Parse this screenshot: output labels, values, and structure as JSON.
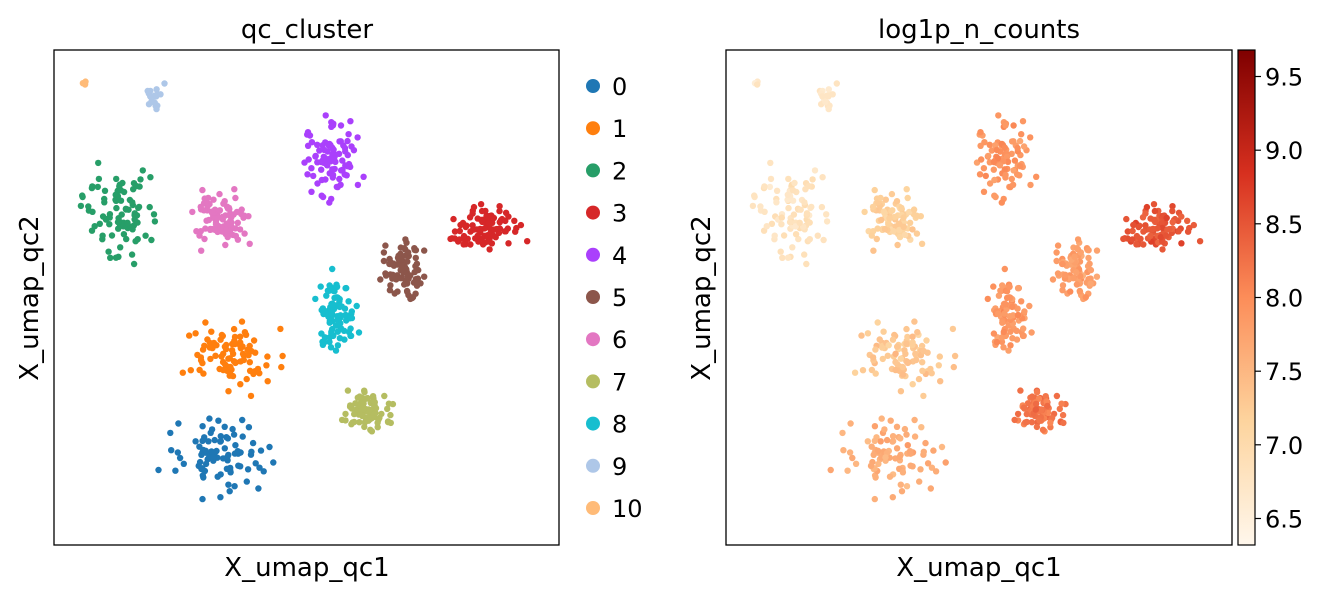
{
  "chart_data": [
    {
      "type": "scatter",
      "title": "qc_cluster",
      "xlabel": "X_umap_qc1",
      "ylabel": "X_umap_qc2",
      "ticks": "none",
      "legend_position": "right",
      "legend": [
        {
          "label": "0",
          "color": "#1f77b4"
        },
        {
          "label": "1",
          "color": "#ff7f0e"
        },
        {
          "label": "2",
          "color": "#279e68"
        },
        {
          "label": "3",
          "color": "#d62728"
        },
        {
          "label": "4",
          "color": "#aa40fc"
        },
        {
          "label": "5",
          "color": "#8c564b"
        },
        {
          "label": "6",
          "color": "#e377c2"
        },
        {
          "label": "7",
          "color": "#b5bd61"
        },
        {
          "label": "8",
          "color": "#17becf"
        },
        {
          "label": "9",
          "color": "#aec7e8"
        },
        {
          "label": "10",
          "color": "#ffbb78"
        }
      ],
      "xlim": [
        0,
        100
      ],
      "ylim": [
        0,
        100
      ],
      "clusters": [
        {
          "name": "0",
          "center": [
            33,
            18
          ],
          "spread": [
            10,
            8
          ]
        },
        {
          "name": "1",
          "center": [
            36,
            38
          ],
          "spread": [
            10,
            7
          ]
        },
        {
          "name": "2",
          "center": [
            14,
            66
          ],
          "spread": [
            8,
            10
          ]
        },
        {
          "name": "3",
          "center": [
            85,
            64
          ],
          "spread": [
            8,
            5
          ]
        },
        {
          "name": "4",
          "center": [
            55,
            78
          ],
          "spread": [
            6,
            8
          ]
        },
        {
          "name": "5",
          "center": [
            69,
            56
          ],
          "spread": [
            4,
            7
          ]
        },
        {
          "name": "6",
          "center": [
            33,
            66
          ],
          "spread": [
            6,
            6
          ]
        },
        {
          "name": "7",
          "center": [
            62,
            27
          ],
          "spread": [
            5,
            4
          ]
        },
        {
          "name": "8",
          "center": [
            56,
            47
          ],
          "spread": [
            4,
            8
          ]
        },
        {
          "name": "9",
          "center": [
            20,
            90
          ],
          "spread": [
            2,
            4
          ]
        },
        {
          "name": "10",
          "center": [
            6,
            93
          ],
          "spread": [
            1,
            1
          ]
        }
      ]
    },
    {
      "type": "scatter",
      "title": "log1p_n_counts",
      "xlabel": "X_umap_qc1",
      "ylabel": "X_umap_qc2",
      "ticks": "none",
      "colormap": "OrRd",
      "colorbar": {
        "ticks": [
          "6.5",
          "7.0",
          "7.5",
          "8.0",
          "8.5",
          "9.0",
          "9.5"
        ],
        "range": [
          6.32,
          9.68
        ]
      },
      "cluster_values": {
        "0": 7.6,
        "1": 7.3,
        "2": 6.8,
        "3": 8.5,
        "4": 7.9,
        "5": 7.8,
        "6": 7.2,
        "7": 8.2,
        "8": 7.9,
        "9": 6.7,
        "10": 6.6
      }
    }
  ]
}
